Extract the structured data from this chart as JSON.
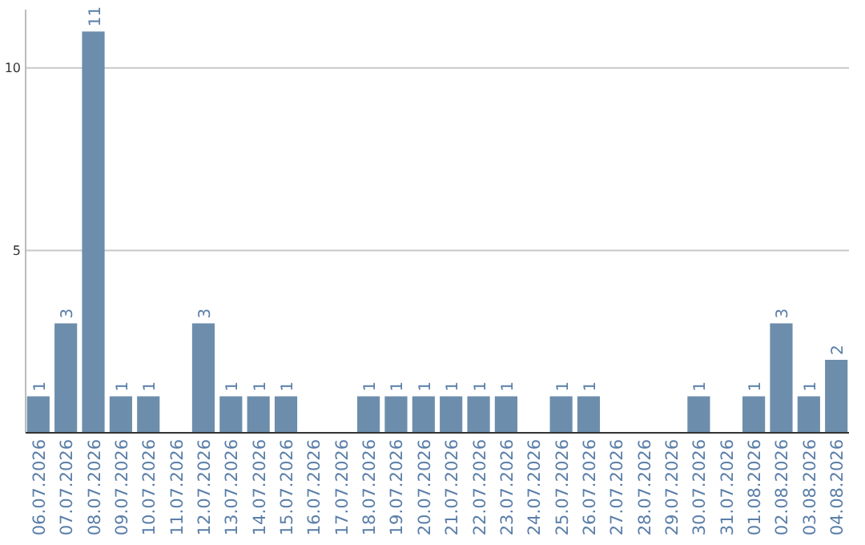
{
  "chart_data": {
    "type": "bar",
    "categories": [
      "06.07.2026",
      "07.07.2026",
      "08.07.2026",
      "09.07.2026",
      "10.07.2026",
      "11.07.2026",
      "12.07.2026",
      "13.07.2026",
      "14.07.2026",
      "15.07.2026",
      "16.07.2026",
      "17.07.2026",
      "18.07.2026",
      "19.07.2026",
      "20.07.2026",
      "21.07.2026",
      "22.07.2026",
      "23.07.2026",
      "24.07.2026",
      "25.07.2026",
      "26.07.2026",
      "27.07.2026",
      "28.07.2026",
      "29.07.2026",
      "30.07.2026",
      "31.07.2026",
      "01.08.2026",
      "02.08.2026",
      "03.08.2026",
      "04.08.2026"
    ],
    "values": [
      1,
      3,
      11,
      1,
      1,
      0,
      3,
      1,
      1,
      1,
      0,
      0,
      1,
      1,
      1,
      1,
      1,
      1,
      0,
      1,
      1,
      0,
      0,
      0,
      1,
      0,
      1,
      3,
      1,
      2
    ],
    "value_labels": [
      "1",
      "3",
      "11",
      "1",
      "1",
      null,
      "3",
      "1",
      "1",
      "1",
      null,
      null,
      "1",
      "1",
      "1",
      "1",
      "1",
      "1",
      null,
      "1",
      "1",
      null,
      null,
      null,
      "1",
      null,
      "1",
      "3",
      "1",
      "2"
    ],
    "color": "#6d8dac",
    "ylim": [
      0,
      11.6
    ],
    "yticks": [
      5,
      10
    ],
    "grid": "y"
  }
}
